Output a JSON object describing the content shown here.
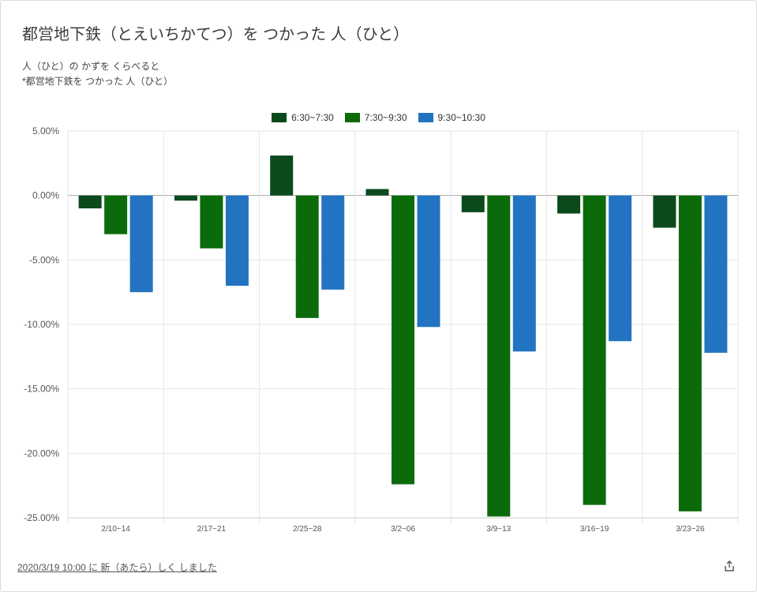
{
  "header": {
    "title": "都営地下鉄（とえいちかてつ）を つかった 人（ひと）",
    "subtitle_line1": "人（ひと）の かずを くらべると",
    "subtitle_line2": "*都営地下鉄を つかった 人（ひと）"
  },
  "footer": {
    "updated_text": "2020/3/19 10:00 に 新（あたら）しく しました",
    "share_icon": "share-icon"
  },
  "chart_data": {
    "type": "bar",
    "categories": [
      "2/10~14",
      "2/17~21",
      "2/25~28",
      "3/2~06",
      "3/9~13",
      "3/16~19",
      "3/23~26"
    ],
    "series": [
      {
        "name": "6:30~7:30",
        "color": "#0b4a1c",
        "values": [
          -1.0,
          -0.4,
          3.1,
          0.5,
          -1.3,
          -1.4,
          -2.5
        ]
      },
      {
        "name": "7:30~9:30",
        "color": "#0b6b0b",
        "values": [
          -3.0,
          -4.1,
          -9.5,
          -22.4,
          -24.9,
          -24.0,
          -24.5
        ]
      },
      {
        "name": "9:30~10:30",
        "color": "#2274c2",
        "values": [
          -7.5,
          -7.0,
          -7.3,
          -10.2,
          -12.1,
          -11.3,
          -12.2
        ]
      }
    ],
    "ylim": [
      -25,
      5
    ],
    "yticks": [
      5,
      0,
      -5,
      -10,
      -15,
      -20,
      -25
    ],
    "ytick_labels": [
      "5.00%",
      "0.00%",
      "-5.00%",
      "-10.00%",
      "-15.00%",
      "-20.00%",
      "-25.00%"
    ],
    "grid": true,
    "legend_position": "top-center"
  }
}
